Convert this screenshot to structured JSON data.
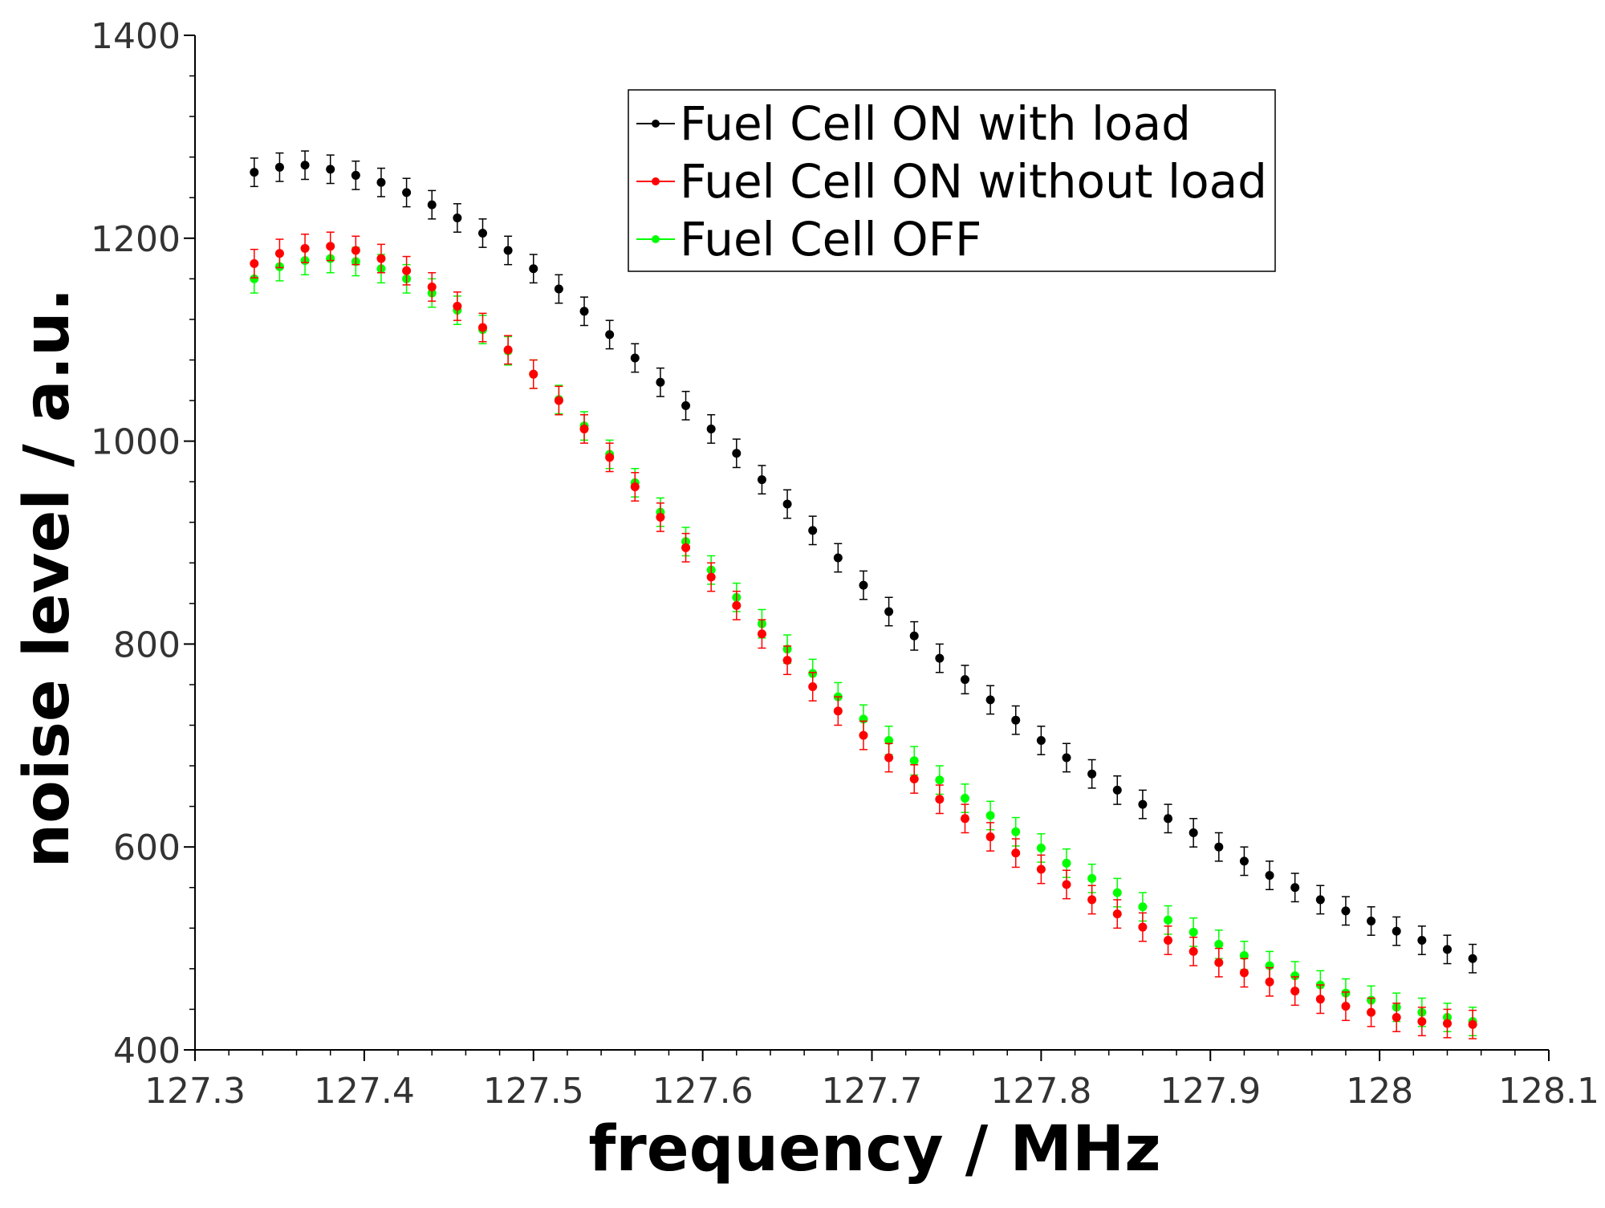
{
  "chart_data": {
    "type": "scatter",
    "title": "",
    "xlabel": "frequency / MHz",
    "ylabel": "noise level / a.u.",
    "xlim": [
      127.3,
      128.1
    ],
    "ylim": [
      400,
      1400
    ],
    "x_ticks": [
      127.3,
      127.4,
      127.5,
      127.6,
      127.7,
      127.8,
      127.9,
      128.0,
      128.1
    ],
    "x_tick_labels": [
      "127.3",
      "127.4",
      "127.5",
      "127.6",
      "127.7",
      "127.8",
      "127.9",
      "128",
      "128.1"
    ],
    "y_ticks": [
      400,
      600,
      800,
      1000,
      1200,
      1400
    ],
    "y_tick_labels": [
      "400",
      "600",
      "800",
      "1000",
      "1200",
      "1400"
    ],
    "grid": false,
    "legend_position": "top-right",
    "error_bars": true,
    "series": [
      {
        "name": "Fuel Cell ON with load",
        "color": "#000000",
        "x": [
          127.335,
          127.35,
          127.365,
          127.38,
          127.395,
          127.41,
          127.425,
          127.44,
          127.455,
          127.47,
          127.485,
          127.5,
          127.515,
          127.53,
          127.545,
          127.56,
          127.575,
          127.59,
          127.605,
          127.62,
          127.635,
          127.65,
          127.665,
          127.68,
          127.695,
          127.71,
          127.725,
          127.74,
          127.755,
          127.77,
          127.785,
          127.8,
          127.815,
          127.83,
          127.845,
          127.86,
          127.875,
          127.89,
          127.905,
          127.92,
          127.935,
          127.95,
          127.965,
          127.98,
          127.995,
          128.01,
          128.025,
          128.04,
          128.055
        ],
        "y": [
          1265,
          1270,
          1272,
          1268,
          1262,
          1255,
          1245,
          1233,
          1220,
          1205,
          1188,
          1170,
          1150,
          1128,
          1105,
          1082,
          1058,
          1035,
          1012,
          988,
          962,
          938,
          912,
          885,
          858,
          832,
          808,
          786,
          765,
          745,
          725,
          705,
          688,
          672,
          656,
          642,
          628,
          614,
          600,
          586,
          572,
          560,
          548,
          537,
          527,
          517,
          508,
          499,
          490
        ]
      },
      {
        "name": "Fuel Cell ON without load",
        "color": "#ff0000",
        "x": [
          127.335,
          127.35,
          127.365,
          127.38,
          127.395,
          127.41,
          127.425,
          127.44,
          127.455,
          127.47,
          127.485,
          127.5,
          127.515,
          127.53,
          127.545,
          127.56,
          127.575,
          127.59,
          127.605,
          127.62,
          127.635,
          127.65,
          127.665,
          127.68,
          127.695,
          127.71,
          127.725,
          127.74,
          127.755,
          127.77,
          127.785,
          127.8,
          127.815,
          127.83,
          127.845,
          127.86,
          127.875,
          127.89,
          127.905,
          127.92,
          127.935,
          127.95,
          127.965,
          127.98,
          127.995,
          128.01,
          128.025,
          128.04,
          128.055
        ],
        "y": [
          1175,
          1185,
          1190,
          1192,
          1188,
          1180,
          1168,
          1152,
          1133,
          1112,
          1090,
          1066,
          1040,
          1012,
          984,
          955,
          925,
          895,
          866,
          838,
          810,
          784,
          758,
          734,
          710,
          688,
          667,
          647,
          628,
          610,
          594,
          578,
          563,
          548,
          534,
          521,
          508,
          497,
          486,
          476,
          467,
          458,
          450,
          443,
          437,
          432,
          428,
          426,
          425
        ]
      },
      {
        "name": "Fuel Cell OFF",
        "color": "#00ff00",
        "x": [
          127.335,
          127.35,
          127.365,
          127.38,
          127.395,
          127.41,
          127.425,
          127.44,
          127.455,
          127.47,
          127.485,
          127.5,
          127.515,
          127.53,
          127.545,
          127.56,
          127.575,
          127.59,
          127.605,
          127.62,
          127.635,
          127.65,
          127.665,
          127.68,
          127.695,
          127.71,
          127.725,
          127.74,
          127.755,
          127.77,
          127.785,
          127.8,
          127.815,
          127.83,
          127.845,
          127.86,
          127.875,
          127.89,
          127.905,
          127.92,
          127.935,
          127.95,
          127.965,
          127.98,
          127.995,
          128.01,
          128.025,
          128.04,
          128.055
        ],
        "y": [
          1160,
          1172,
          1178,
          1180,
          1177,
          1170,
          1160,
          1146,
          1129,
          1110,
          1089,
          1066,
          1041,
          1015,
          987,
          959,
          930,
          901,
          873,
          846,
          820,
          795,
          771,
          748,
          726,
          705,
          685,
          666,
          648,
          631,
          615,
          599,
          584,
          569,
          555,
          541,
          528,
          516,
          504,
          493,
          483,
          473,
          464,
          456,
          449,
          442,
          437,
          432,
          428
        ]
      }
    ]
  }
}
